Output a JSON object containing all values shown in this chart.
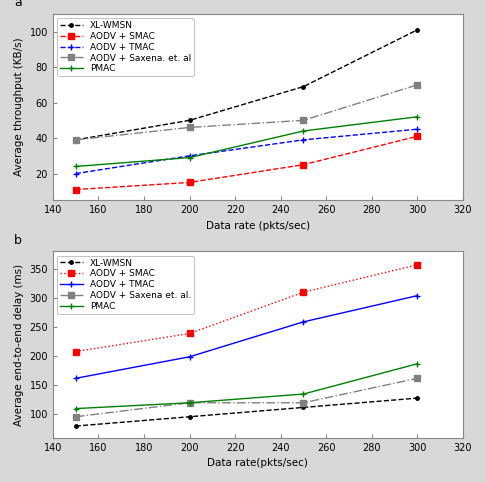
{
  "x": [
    150,
    200,
    250,
    300
  ],
  "subplot_a": {
    "title": "a",
    "xlabel": "Data rate (pkts/sec)",
    "ylabel": "Average throughput (KB/s)",
    "xlim": [
      140,
      320
    ],
    "ylim": [
      5,
      110
    ],
    "yticks": [
      20,
      40,
      60,
      80,
      100
    ],
    "xticks": [
      140,
      160,
      180,
      200,
      220,
      240,
      260,
      280,
      300,
      320
    ],
    "series": [
      {
        "label": "XL-WMSN",
        "color": "#000000",
        "linestyle": "--",
        "marker": ".",
        "markersize": 5,
        "data": [
          39,
          50,
          69,
          101
        ]
      },
      {
        "label": "AODV + SMAC",
        "color": "#ff0000",
        "linestyle": "--",
        "marker": "s",
        "markersize": 4,
        "data": [
          11,
          15,
          25,
          41
        ]
      },
      {
        "label": "AODV + TMAC",
        "color": "#0000ff",
        "linestyle": "--",
        "marker": "+",
        "markersize": 5,
        "data": [
          20,
          30,
          39,
          45
        ]
      },
      {
        "label": "AODV + Saxena. et. al",
        "color": "#808080",
        "linestyle": "-.",
        "marker": "s",
        "markersize": 4,
        "data": [
          39,
          46,
          50,
          70
        ]
      },
      {
        "label": "PMAC",
        "color": "#008000",
        "linestyle": "-",
        "marker": "+",
        "markersize": 5,
        "data": [
          24,
          29,
          44,
          52
        ]
      }
    ]
  },
  "subplot_b": {
    "title": "b",
    "xlabel": "Data rate(pkts/sec)",
    "ylabel": "Average end-to-end delay (ms)",
    "xlim": [
      140,
      320
    ],
    "ylim": [
      60,
      380
    ],
    "yticks": [
      100,
      150,
      200,
      250,
      300,
      350
    ],
    "xticks": [
      140,
      160,
      180,
      200,
      220,
      240,
      260,
      280,
      300,
      320
    ],
    "series": [
      {
        "label": "XL-WMSN",
        "color": "#000000",
        "linestyle": "--",
        "marker": ".",
        "markersize": 5,
        "data": [
          80,
          96,
          112,
          128
        ]
      },
      {
        "label": "AODV + SMAC",
        "color": "#ff0000",
        "linestyle": ":",
        "marker": "s",
        "markersize": 4,
        "data": [
          208,
          239,
          310,
          357
        ]
      },
      {
        "label": "AODV + TMAC",
        "color": "#0000ff",
        "linestyle": "-",
        "marker": "+",
        "markersize": 5,
        "data": [
          162,
          199,
          259,
          304
        ]
      },
      {
        "label": "AODV + Saxena et. al.",
        "color": "#808080",
        "linestyle": "-.",
        "marker": "s",
        "markersize": 4,
        "data": [
          96,
          120,
          120,
          162
        ]
      },
      {
        "label": "PMAC",
        "color": "#008000",
        "linestyle": "-",
        "marker": "+",
        "markersize": 5,
        "data": [
          110,
          120,
          135,
          187
        ]
      }
    ]
  },
  "legend_fontsize": 6.5,
  "tick_fontsize": 7,
  "label_fontsize": 7.5,
  "plot_bg_color": "#ffffff",
  "fig_bg_color": "#d8d8d8"
}
